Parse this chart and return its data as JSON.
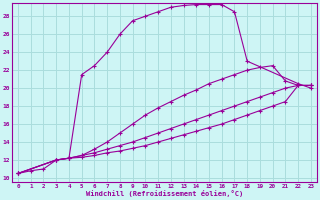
{
  "xlabel": "Windchill (Refroidissement éolien,°C)",
  "bg_color": "#cef5f5",
  "grid_color": "#aadddd",
  "line_color": "#990099",
  "x_ticks": [
    0,
    1,
    2,
    3,
    4,
    5,
    6,
    7,
    8,
    9,
    10,
    11,
    12,
    13,
    14,
    15,
    16,
    17,
    18,
    19,
    20,
    21,
    22,
    23
  ],
  "y_ticks": [
    10,
    12,
    14,
    16,
    18,
    20,
    22,
    24,
    26,
    28
  ],
  "xlim": [
    -0.5,
    23.5
  ],
  "ylim": [
    9.5,
    29.5
  ],
  "curve1_x": [
    0,
    1,
    2,
    3,
    4,
    5,
    6,
    7,
    8,
    9,
    10,
    11,
    12,
    13,
    14,
    15,
    16,
    17,
    18,
    22,
    23
  ],
  "curve1_y": [
    10.5,
    10.8,
    11.0,
    12.0,
    12.2,
    21.5,
    22.5,
    24.0,
    26.0,
    27.5,
    28.0,
    28.5,
    29.0,
    29.2,
    29.3,
    29.3,
    29.3,
    28.5,
    23.0,
    20.5,
    20.0
  ],
  "curve2_x": [
    0,
    3,
    4,
    5,
    6,
    7,
    8,
    9,
    10,
    11,
    12,
    13,
    14,
    15,
    16,
    17,
    18,
    19,
    20,
    21,
    22,
    23
  ],
  "curve2_y": [
    10.5,
    12.0,
    12.2,
    12.5,
    13.2,
    14.0,
    15.0,
    16.0,
    17.0,
    17.8,
    18.5,
    19.2,
    19.8,
    20.5,
    21.0,
    21.5,
    22.0,
    22.3,
    22.5,
    20.8,
    20.3,
    20.3
  ],
  "curve3_x": [
    0,
    3,
    4,
    5,
    6,
    7,
    8,
    9,
    10,
    11,
    12,
    13,
    14,
    15,
    16,
    17,
    18,
    19,
    20,
    21,
    22,
    23
  ],
  "curve3_y": [
    10.5,
    12.0,
    12.2,
    12.5,
    12.8,
    13.2,
    13.6,
    14.0,
    14.5,
    15.0,
    15.5,
    16.0,
    16.5,
    17.0,
    17.5,
    18.0,
    18.5,
    19.0,
    19.5,
    20.0,
    20.3,
    20.3
  ],
  "curve4_x": [
    0,
    3,
    4,
    5,
    6,
    7,
    8,
    9,
    10,
    11,
    12,
    13,
    14,
    15,
    16,
    17,
    18,
    19,
    20,
    21,
    22,
    23
  ],
  "curve4_y": [
    10.5,
    12.0,
    12.2,
    12.3,
    12.5,
    12.8,
    13.0,
    13.3,
    13.6,
    14.0,
    14.4,
    14.8,
    15.2,
    15.6,
    16.0,
    16.5,
    17.0,
    17.5,
    18.0,
    18.5,
    20.3,
    20.3
  ]
}
